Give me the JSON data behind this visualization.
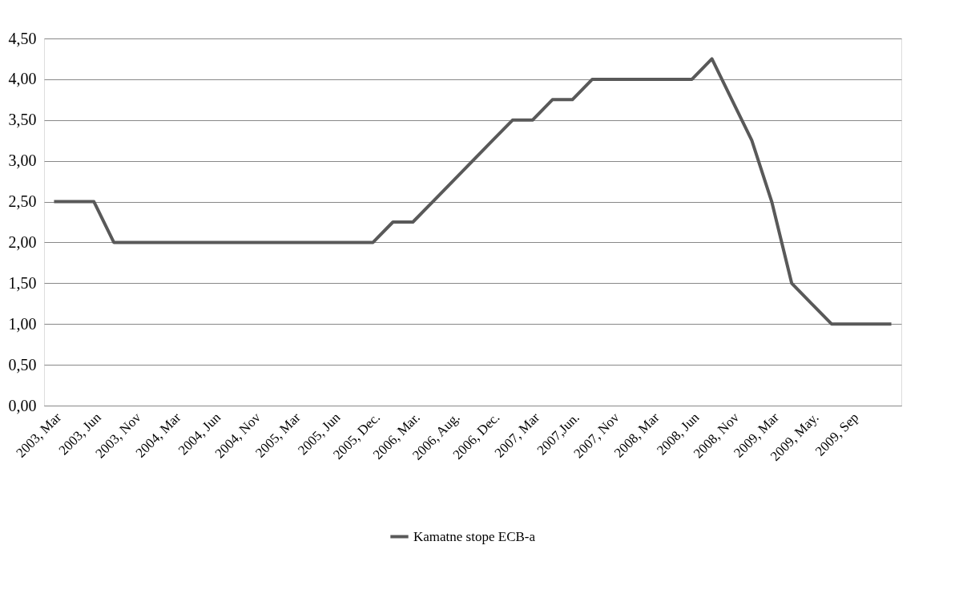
{
  "chart_data": {
    "type": "line",
    "categories": [
      "2003, Mar",
      null,
      "2003, Jun",
      null,
      "2003, Nov",
      null,
      "2004, Mar",
      null,
      "2004, Jun",
      null,
      "2004, Nov",
      null,
      "2005, Mar",
      null,
      "2005, Jun",
      null,
      "2005, Dec.",
      null,
      "2006, Mar.",
      null,
      "2006, Aug.",
      null,
      "2006, Dec.",
      null,
      "2007, Mar",
      null,
      "2007,Jun.",
      null,
      "2007, Nov",
      null,
      "2008, Mar",
      null,
      "2008, Jun",
      null,
      "2008, Nov",
      null,
      "2009, Mar",
      null,
      "2009, May.",
      null,
      "2009, Sep",
      null,
      null
    ],
    "series": [
      {
        "name": "Kamatne stope ECB-a",
        "color": "#595959",
        "values": [
          2.5,
          2.5,
          2.5,
          2.0,
          2.0,
          2.0,
          2.0,
          2.0,
          2.0,
          2.0,
          2.0,
          2.0,
          2.0,
          2.0,
          2.0,
          2.0,
          2.0,
          2.25,
          2.25,
          2.5,
          2.75,
          3.0,
          3.25,
          3.5,
          3.5,
          3.75,
          3.75,
          4.0,
          4.0,
          4.0,
          4.0,
          4.0,
          4.0,
          4.25,
          3.75,
          3.25,
          2.5,
          1.5,
          1.25,
          1.0,
          1.0,
          1.0,
          1.0
        ]
      }
    ],
    "ylim": [
      0,
      4.5
    ],
    "yticks": [
      {
        "value": 0,
        "label": "0,00"
      },
      {
        "value": 0.5,
        "label": "0,50"
      },
      {
        "value": 1,
        "label": "1,00"
      },
      {
        "value": 1.5,
        "label": "1,50"
      },
      {
        "value": 2,
        "label": "2,00"
      },
      {
        "value": 2.5,
        "label": "2,50"
      },
      {
        "value": 3,
        "label": "3,00"
      },
      {
        "value": 3.5,
        "label": "3,50"
      },
      {
        "value": 4,
        "label": "4,00"
      },
      {
        "value": 4.5,
        "label": "4,50"
      }
    ],
    "grid": "y",
    "legend": "bottom",
    "marker": "none",
    "line_style": "solid"
  }
}
